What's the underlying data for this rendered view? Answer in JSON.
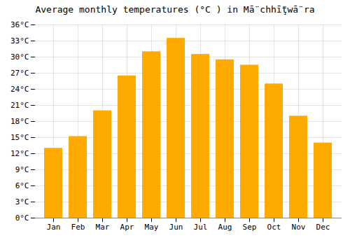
{
  "chart_data": {
    "type": "bar",
    "title": "Average monthly temperatures (°C ) in Mā̈ chhī̈ţwā̈ ra",
    "categories": [
      "Jan",
      "Feb",
      "Mar",
      "Apr",
      "May",
      "Jun",
      "Jul",
      "Aug",
      "Sep",
      "Oct",
      "Nov",
      "Dec"
    ],
    "values": [
      13.0,
      15.2,
      20.0,
      26.5,
      31.0,
      33.5,
      30.5,
      29.5,
      28.5,
      25.0,
      19.0,
      14.0
    ],
    "color": "#FFAA00",
    "ylim": [
      0,
      36
    ],
    "yticks": [
      {
        "value": 0,
        "label": "0°C"
      },
      {
        "value": 3,
        "label": "3°C"
      },
      {
        "value": 6,
        "label": "6°C"
      },
      {
        "value": 9,
        "label": "9°C"
      },
      {
        "value": 12,
        "label": "12°C"
      },
      {
        "value": 15,
        "label": "15°C"
      },
      {
        "value": 18,
        "label": "18°C"
      },
      {
        "value": 21,
        "label": "21°C"
      },
      {
        "value": 24,
        "label": "24°C"
      },
      {
        "value": 27,
        "label": "27°C"
      },
      {
        "value": 30,
        "label": "30°C"
      },
      {
        "value": 33,
        "label": "33°C"
      },
      {
        "value": 36,
        "label": "36°C"
      }
    ],
    "grid": true
  }
}
